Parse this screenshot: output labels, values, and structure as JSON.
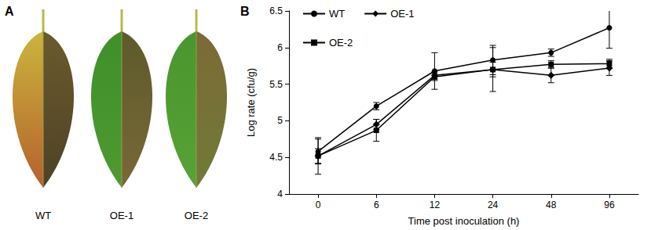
{
  "photo_panel": {
    "label": "A",
    "leaves": [
      "WT",
      "OE-1",
      "OE-2"
    ]
  },
  "chart_data": {
    "type": "line",
    "annotations": [
      "B"
    ],
    "x_label": "Time post inoculation (h)",
    "y_label": "Log rate (cfu/g)",
    "categories": [
      "0",
      "6",
      "12",
      "24",
      "48",
      "96"
    ],
    "series": [
      {
        "name": "WT",
        "color": "#000000",
        "marker": "circle",
        "values": [
          4.58,
          5.2,
          5.68,
          5.83,
          5.93,
          6.27
        ],
        "errors": [
          0.17,
          0.05,
          0.25,
          0.2,
          0.05,
          0.28
        ]
      },
      {
        "name": "OE-1",
        "color": "#000000",
        "marker": "diamond",
        "values": [
          4.52,
          4.95,
          5.62,
          5.7,
          5.62,
          5.72
        ],
        "errors": [
          0.1,
          0.07,
          0.05,
          0.1,
          0.1,
          0.1
        ]
      },
      {
        "name": "OE-2",
        "color": "#000000",
        "marker": "square",
        "values": [
          4.52,
          4.87,
          5.6,
          5.7,
          5.77,
          5.78
        ],
        "errors": [
          0.25,
          0.15,
          0.05,
          0.3,
          0.05,
          0.06
        ]
      }
    ],
    "ylim": [
      4,
      6.5
    ],
    "yticks": [
      4,
      4.5,
      5,
      5.5,
      6,
      6.5
    ],
    "grid": false,
    "legend": "upper left"
  }
}
